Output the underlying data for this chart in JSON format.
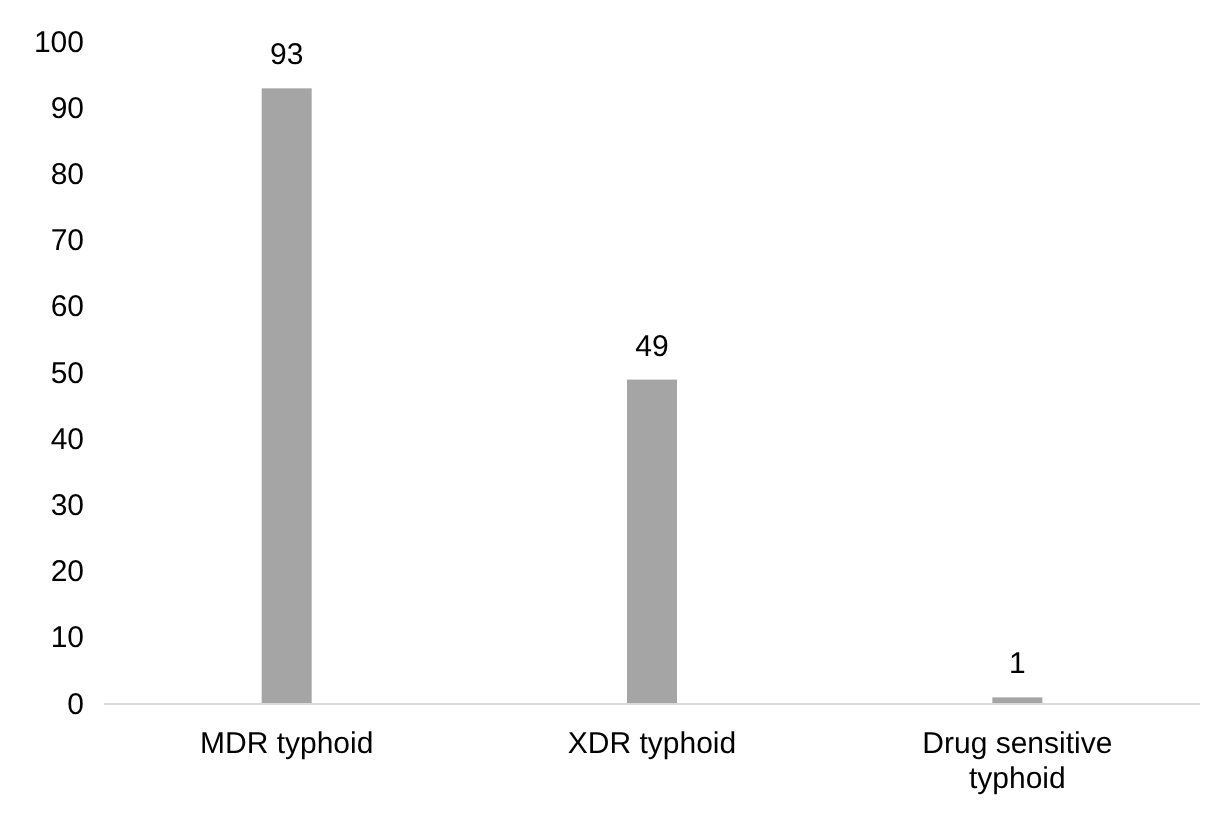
{
  "chart_data": {
    "type": "bar",
    "categories": [
      "MDR typhoid",
      "XDR typhoid",
      "Drug sensitive typhoid"
    ],
    "values": [
      93,
      49,
      1
    ],
    "color": "#a5a5a5",
    "ylim": [
      0,
      100
    ],
    "yticks": [
      0,
      10,
      20,
      30,
      40,
      50,
      60,
      70,
      80,
      90,
      100
    ],
    "data_labels": true,
    "grid": false
  }
}
